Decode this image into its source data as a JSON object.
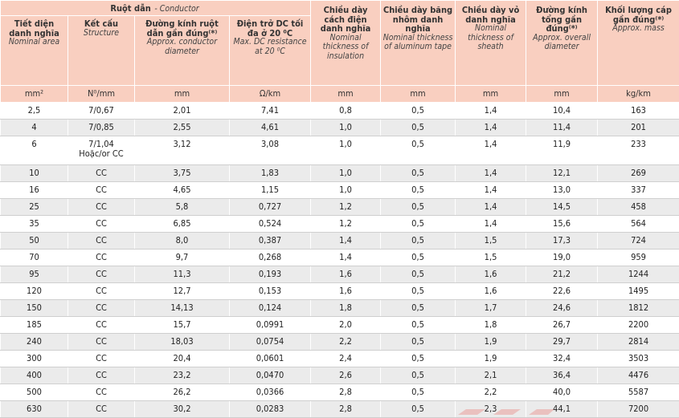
{
  "header": {
    "conductor_group_vi": "Ruột dẫn",
    "conductor_group_en": "- Conductor",
    "columns": [
      {
        "vi": "Tiết diện danh nghĩa",
        "en": "Nominal area",
        "unit": "mm²"
      },
      {
        "vi": "Kết cấu",
        "en": "Structure",
        "unit": "N⁰/mm"
      },
      {
        "vi": "Đường kính ruột dẫn gần đúng⁽*⁾",
        "en": "Approx. conductor diameter",
        "unit": "mm"
      },
      {
        "vi": "Điện trở DC tối đa ở 20 ⁰C",
        "en": "Max. DC resistance at 20 ⁰C",
        "unit": "Ω/km"
      },
      {
        "vi": "Chiều dày cách điện danh nghĩa",
        "en": "Nominal thickness of insulation",
        "unit": "mm"
      },
      {
        "vi": "Chiều dày băng nhôm danh nghĩa",
        "en": "Nominal thickness of aluminum tape",
        "unit": "mm"
      },
      {
        "vi": "Chiều dày vỏ danh nghĩa",
        "en": "Nominal thickness of sheath",
        "unit": "mm"
      },
      {
        "vi": "Đường kính tổng gần đúng⁽*⁾",
        "en": "Approx. overall diameter",
        "unit": "mm"
      },
      {
        "vi": "Khối lượng cáp gần đúng⁽*⁾",
        "en": "Approx. mass",
        "unit": "kg/km"
      }
    ]
  },
  "rows": [
    [
      "2,5",
      "7/0,67",
      "2,01",
      "7,41",
      "0,8",
      "0,5",
      "1,4",
      "10,4",
      "163"
    ],
    [
      "4",
      "7/0,85",
      "2,55",
      "4,61",
      "1,0",
      "0,5",
      "1,4",
      "11,4",
      "201"
    ],
    [
      "6",
      "7/1,04\nHoặc/or CC",
      "3,12",
      "3,08",
      "1,0",
      "0,5",
      "1,4",
      "11,9",
      "233"
    ],
    [
      "10",
      "CC",
      "3,75",
      "1,83",
      "1,0",
      "0,5",
      "1,4",
      "12,1",
      "269"
    ],
    [
      "16",
      "CC",
      "4,65",
      "1,15",
      "1,0",
      "0,5",
      "1,4",
      "13,0",
      "337"
    ],
    [
      "25",
      "CC",
      "5,8",
      "0,727",
      "1,2",
      "0,5",
      "1,4",
      "14,5",
      "458"
    ],
    [
      "35",
      "CC",
      "6,85",
      "0,524",
      "1,2",
      "0,5",
      "1,4",
      "15,6",
      "564"
    ],
    [
      "50",
      "CC",
      "8,0",
      "0,387",
      "1,4",
      "0,5",
      "1,5",
      "17,3",
      "724"
    ],
    [
      "70",
      "CC",
      "9,7",
      "0,268",
      "1,4",
      "0,5",
      "1,5",
      "19,0",
      "959"
    ],
    [
      "95",
      "CC",
      "11,3",
      "0,193",
      "1,6",
      "0,5",
      "1,6",
      "21,2",
      "1244"
    ],
    [
      "120",
      "CC",
      "12,7",
      "0,153",
      "1,6",
      "0,5",
      "1,6",
      "22,6",
      "1495"
    ],
    [
      "150",
      "CC",
      "14,13",
      "0,124",
      "1,8",
      "0,5",
      "1,7",
      "24,6",
      "1812"
    ],
    [
      "185",
      "CC",
      "15,7",
      "0,0991",
      "2,0",
      "0,5",
      "1,8",
      "26,7",
      "2200"
    ],
    [
      "240",
      "CC",
      "18,03",
      "0,0754",
      "2,2",
      "0,5",
      "1,9",
      "29,7",
      "2814"
    ],
    [
      "300",
      "CC",
      "20,4",
      "0,0601",
      "2,4",
      "0,5",
      "1,9",
      "32,4",
      "3503"
    ],
    [
      "400",
      "CC",
      "23,2",
      "0,0470",
      "2,6",
      "0,5",
      "2,1",
      "36,4",
      "4476"
    ],
    [
      "500",
      "CC",
      "26,2",
      "0,0366",
      "2,8",
      "0,5",
      "2,2",
      "40,0",
      "5587"
    ],
    [
      "630",
      "CC",
      "30,2",
      "0,0283",
      "2,8",
      "0,5",
      "2,3",
      "44,1",
      "7200"
    ]
  ],
  "colors": {
    "header_bg": "#f9cfc0",
    "stripe": "#ebebeb",
    "accent": "#e8453c"
  }
}
